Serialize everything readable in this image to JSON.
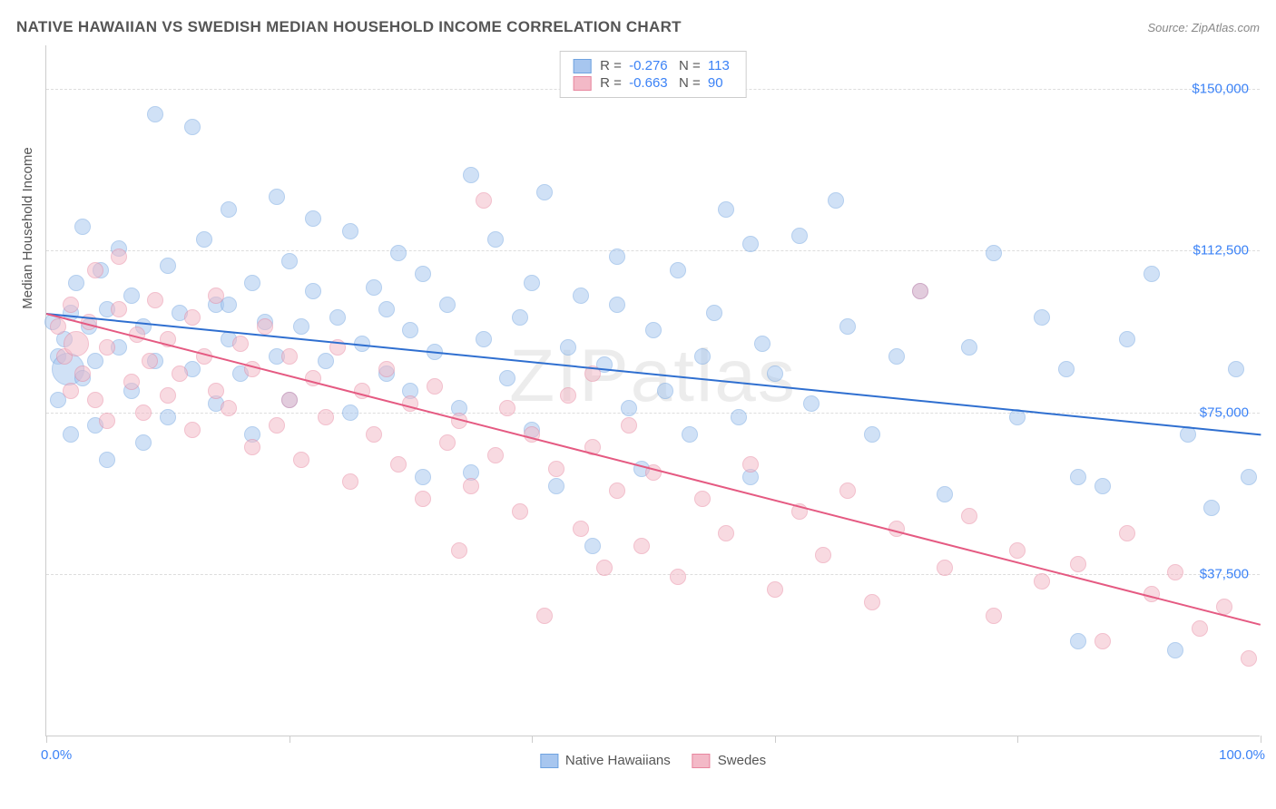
{
  "title": "NATIVE HAWAIIAN VS SWEDISH MEDIAN HOUSEHOLD INCOME CORRELATION CHART",
  "source": "Source: ZipAtlas.com",
  "watermark": "ZIPatlas",
  "yaxis_label": "Median Household Income",
  "chart": {
    "type": "scatter",
    "xlim": [
      0,
      100
    ],
    "ylim": [
      0,
      160000
    ],
    "ytick_values": [
      37500,
      75000,
      112500,
      150000
    ],
    "ytick_labels": [
      "$37,500",
      "$75,000",
      "$112,500",
      "$150,000"
    ],
    "xtick_values": [
      0,
      20,
      40,
      60,
      80,
      100
    ],
    "xmin_label": "0.0%",
    "xmax_label": "100.0%",
    "background_color": "#ffffff",
    "grid_color": "#dddddd",
    "axis_color": "#cccccc",
    "tick_label_color": "#3b82f6",
    "axis_label_color": "#555555",
    "point_radius": 9,
    "point_opacity": 0.52
  },
  "series": [
    {
      "name": "Native Hawaiians",
      "color_fill": "#a7c6ef",
      "color_stroke": "#6fa3e0",
      "trend_color": "#2f6fd0",
      "R": "-0.276",
      "N": "113",
      "trend": {
        "x1": 0,
        "y1": 98000,
        "x2": 100,
        "y2": 70000
      },
      "points": [
        [
          0.5,
          96000
        ],
        [
          1,
          88000
        ],
        [
          1,
          78000
        ],
        [
          1.5,
          92000
        ],
        [
          1.8,
          85000,
          18
        ],
        [
          2,
          98000
        ],
        [
          2,
          70000
        ],
        [
          2.5,
          105000
        ],
        [
          3,
          83000
        ],
        [
          3,
          118000
        ],
        [
          3.5,
          95000
        ],
        [
          4,
          87000
        ],
        [
          4,
          72000
        ],
        [
          4.5,
          108000
        ],
        [
          5,
          99000
        ],
        [
          5,
          64000
        ],
        [
          6,
          113000
        ],
        [
          6,
          90000
        ],
        [
          7,
          80000
        ],
        [
          7,
          102000
        ],
        [
          8,
          95000
        ],
        [
          8,
          68000
        ],
        [
          9,
          144000
        ],
        [
          9,
          87000
        ],
        [
          10,
          74000
        ],
        [
          10,
          109000
        ],
        [
          11,
          98000
        ],
        [
          12,
          141000
        ],
        [
          12,
          85000
        ],
        [
          13,
          115000
        ],
        [
          14,
          100000
        ],
        [
          14,
          77000
        ],
        [
          15,
          92000
        ],
        [
          15,
          122000
        ],
        [
          16,
          84000
        ],
        [
          17,
          105000
        ],
        [
          17,
          70000
        ],
        [
          18,
          96000
        ],
        [
          19,
          88000
        ],
        [
          19,
          125000
        ],
        [
          20,
          110000
        ],
        [
          20,
          78000
        ],
        [
          21,
          95000
        ],
        [
          22,
          103000
        ],
        [
          22,
          120000
        ],
        [
          23,
          87000
        ],
        [
          24,
          97000
        ],
        [
          25,
          117000
        ],
        [
          25,
          75000
        ],
        [
          26,
          91000
        ],
        [
          27,
          104000
        ],
        [
          28,
          84000
        ],
        [
          28,
          99000
        ],
        [
          29,
          112000
        ],
        [
          30,
          80000
        ],
        [
          30,
          94000
        ],
        [
          31,
          107000
        ],
        [
          32,
          89000
        ],
        [
          33,
          100000
        ],
        [
          34,
          76000
        ],
        [
          35,
          130000
        ],
        [
          35,
          61000
        ],
        [
          36,
          92000
        ],
        [
          37,
          115000
        ],
        [
          38,
          83000
        ],
        [
          39,
          97000
        ],
        [
          40,
          105000
        ],
        [
          40,
          71000
        ],
        [
          41,
          126000
        ],
        [
          42,
          58000
        ],
        [
          43,
          90000
        ],
        [
          44,
          102000
        ],
        [
          45,
          44000
        ],
        [
          46,
          86000
        ],
        [
          47,
          111000
        ],
        [
          48,
          76000
        ],
        [
          49,
          62000
        ],
        [
          50,
          94000
        ],
        [
          51,
          80000
        ],
        [
          52,
          108000
        ],
        [
          53,
          70000
        ],
        [
          54,
          88000
        ],
        [
          55,
          98000
        ],
        [
          56,
          122000
        ],
        [
          57,
          74000
        ],
        [
          58,
          60000
        ],
        [
          59,
          91000
        ],
        [
          60,
          84000
        ],
        [
          62,
          116000
        ],
        [
          63,
          77000
        ],
        [
          65,
          124000
        ],
        [
          66,
          95000
        ],
        [
          68,
          70000
        ],
        [
          70,
          88000
        ],
        [
          72,
          103000
        ],
        [
          74,
          56000
        ],
        [
          76,
          90000
        ],
        [
          78,
          112000
        ],
        [
          80,
          74000
        ],
        [
          82,
          97000
        ],
        [
          84,
          85000
        ],
        [
          85,
          22000
        ],
        [
          87,
          58000
        ],
        [
          89,
          92000
        ],
        [
          91,
          107000
        ],
        [
          93,
          20000
        ],
        [
          94,
          70000
        ],
        [
          96,
          53000
        ],
        [
          98,
          85000
        ],
        [
          99,
          60000
        ],
        [
          58,
          114000
        ],
        [
          47,
          100000
        ],
        [
          31,
          60000
        ],
        [
          15,
          100000
        ],
        [
          85,
          60000
        ]
      ]
    },
    {
      "name": "Swedes",
      "color_fill": "#f3b9c7",
      "color_stroke": "#e8869f",
      "trend_color": "#e55a82",
      "R": "-0.663",
      "N": "90",
      "trend": {
        "x1": 0,
        "y1": 98000,
        "x2": 100,
        "y2": 26000
      },
      "points": [
        [
          1,
          95000
        ],
        [
          1.5,
          88000
        ],
        [
          2,
          100000
        ],
        [
          2,
          80000
        ],
        [
          2.5,
          91000,
          14
        ],
        [
          3,
          84000
        ],
        [
          3.5,
          96000
        ],
        [
          4,
          78000
        ],
        [
          4,
          108000
        ],
        [
          5,
          90000
        ],
        [
          5,
          73000
        ],
        [
          6,
          99000
        ],
        [
          6,
          111000
        ],
        [
          7,
          82000
        ],
        [
          7.5,
          93000
        ],
        [
          8,
          75000
        ],
        [
          8.5,
          87000
        ],
        [
          9,
          101000
        ],
        [
          10,
          79000
        ],
        [
          10,
          92000
        ],
        [
          11,
          84000
        ],
        [
          12,
          97000
        ],
        [
          12,
          71000
        ],
        [
          13,
          88000
        ],
        [
          14,
          80000
        ],
        [
          14,
          102000
        ],
        [
          15,
          76000
        ],
        [
          16,
          91000
        ],
        [
          17,
          67000
        ],
        [
          17,
          85000
        ],
        [
          18,
          95000
        ],
        [
          19,
          72000
        ],
        [
          20,
          88000
        ],
        [
          20,
          78000
        ],
        [
          21,
          64000
        ],
        [
          22,
          83000
        ],
        [
          23,
          74000
        ],
        [
          24,
          90000
        ],
        [
          25,
          59000
        ],
        [
          26,
          80000
        ],
        [
          27,
          70000
        ],
        [
          28,
          85000
        ],
        [
          29,
          63000
        ],
        [
          30,
          77000
        ],
        [
          31,
          55000
        ],
        [
          32,
          81000
        ],
        [
          33,
          68000
        ],
        [
          34,
          73000
        ],
        [
          35,
          58000
        ],
        [
          36,
          124000
        ],
        [
          37,
          65000
        ],
        [
          38,
          76000
        ],
        [
          39,
          52000
        ],
        [
          40,
          70000
        ],
        [
          41,
          28000
        ],
        [
          42,
          62000
        ],
        [
          43,
          79000
        ],
        [
          44,
          48000
        ],
        [
          45,
          67000
        ],
        [
          46,
          39000
        ],
        [
          47,
          57000
        ],
        [
          48,
          72000
        ],
        [
          49,
          44000
        ],
        [
          50,
          61000
        ],
        [
          52,
          37000
        ],
        [
          54,
          55000
        ],
        [
          56,
          47000
        ],
        [
          58,
          63000
        ],
        [
          60,
          34000
        ],
        [
          62,
          52000
        ],
        [
          64,
          42000
        ],
        [
          66,
          57000
        ],
        [
          68,
          31000
        ],
        [
          70,
          48000
        ],
        [
          72,
          103000
        ],
        [
          74,
          39000
        ],
        [
          76,
          51000
        ],
        [
          78,
          28000
        ],
        [
          80,
          43000
        ],
        [
          82,
          36000
        ],
        [
          85,
          40000
        ],
        [
          87,
          22000
        ],
        [
          89,
          47000
        ],
        [
          91,
          33000
        ],
        [
          93,
          38000
        ],
        [
          95,
          25000
        ],
        [
          97,
          30000
        ],
        [
          99,
          18000
        ],
        [
          34,
          43000
        ],
        [
          45,
          84000
        ]
      ]
    }
  ],
  "legend_bottom": [
    {
      "label": "Native Hawaiians",
      "series_idx": 0
    },
    {
      "label": "Swedes",
      "series_idx": 1
    }
  ]
}
